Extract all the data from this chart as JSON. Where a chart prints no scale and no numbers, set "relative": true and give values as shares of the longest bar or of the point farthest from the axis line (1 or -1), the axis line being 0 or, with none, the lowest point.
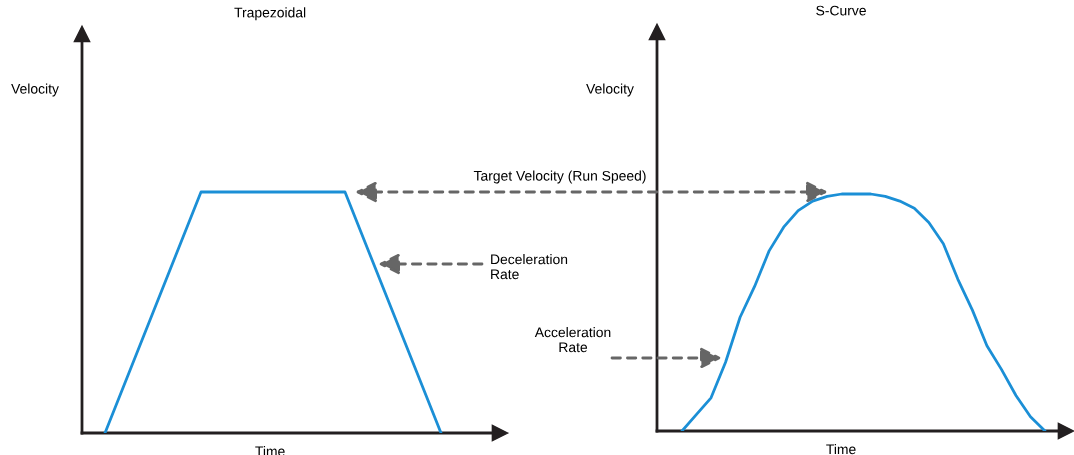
{
  "chart_data": [
    {
      "type": "line",
      "title": "Trapezoidal",
      "xlabel": "Time",
      "ylabel": "Velocity",
      "relative": true,
      "color": "#1b8fd6",
      "categories": [
        null,
        null,
        null,
        null,
        null,
        null,
        null,
        null
      ],
      "values": [
        0,
        0.5,
        1,
        1,
        1,
        1,
        0.5,
        0
      ],
      "annotations": [
        "Target Velocity (Run Speed)",
        "Deceleration\nRate"
      ]
    },
    {
      "type": "line",
      "title": "S-Curve",
      "xlabel": "Time",
      "ylabel": "Velocity",
      "relative": true,
      "color": "#1b8fd6",
      "categories": [
        null,
        null,
        null,
        null,
        null,
        null,
        null,
        null,
        null,
        null,
        null,
        null,
        null,
        null,
        null,
        null,
        null,
        null,
        null,
        null,
        null,
        null,
        null,
        null,
        null,
        null
      ],
      "values": [
        0,
        0.07,
        0.14,
        0.29,
        0.48,
        0.61,
        0.76,
        0.86,
        0.93,
        0.97,
        0.99,
        1,
        1,
        1,
        0.99,
        0.97,
        0.94,
        0.88,
        0.79,
        0.64,
        0.51,
        0.36,
        0.26,
        0.15,
        0.06,
        0
      ],
      "annotations": [
        "Acceleration\nRate"
      ]
    }
  ]
}
